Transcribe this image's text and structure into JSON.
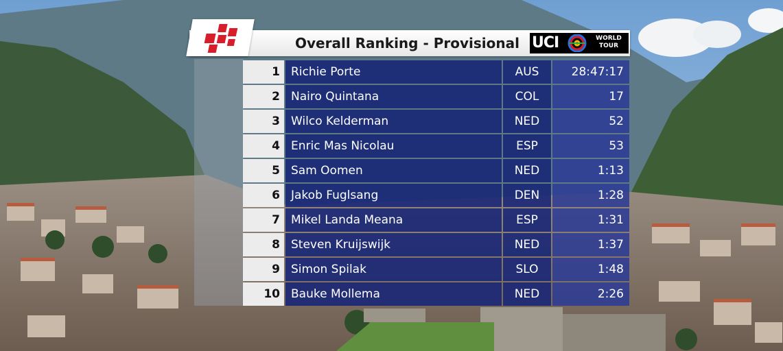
{
  "header": {
    "title": "Overall Ranking - Provisional",
    "uci_label": "UCI",
    "world_tour_line1": "WORLD",
    "world_tour_line2": "TOUR"
  },
  "colors": {
    "name_cell": "#162476",
    "time_cell": "#2a3a96",
    "rank_cell": "#ececec",
    "logo_red": "#d81e2a"
  },
  "icons": {
    "race_logo": "red-checkered-logo",
    "uci_logo": "uci-rainbow-rings"
  },
  "ranking": [
    {
      "rank": "1",
      "name": "Richie Porte",
      "nat": "AUS",
      "time": "28:47:17"
    },
    {
      "rank": "2",
      "name": "Nairo Quintana",
      "nat": "COL",
      "time": "17"
    },
    {
      "rank": "3",
      "name": "Wilco Kelderman",
      "nat": "NED",
      "time": "52"
    },
    {
      "rank": "4",
      "name": "Enric Mas Nicolau",
      "nat": "ESP",
      "time": "53"
    },
    {
      "rank": "5",
      "name": "Sam Oomen",
      "nat": "NED",
      "time": "1:13"
    },
    {
      "rank": "6",
      "name": "Jakob Fuglsang",
      "nat": "DEN",
      "time": "1:28"
    },
    {
      "rank": "7",
      "name": "Mikel Landa Meana",
      "nat": "ESP",
      "time": "1:31"
    },
    {
      "rank": "8",
      "name": "Steven Kruijswijk",
      "nat": "NED",
      "time": "1:37"
    },
    {
      "rank": "9",
      "name": "Simon Spilak",
      "nat": "SLO",
      "time": "1:48"
    },
    {
      "rank": "10",
      "name": "Bauke Mollema",
      "nat": "NED",
      "time": "2:26"
    }
  ]
}
